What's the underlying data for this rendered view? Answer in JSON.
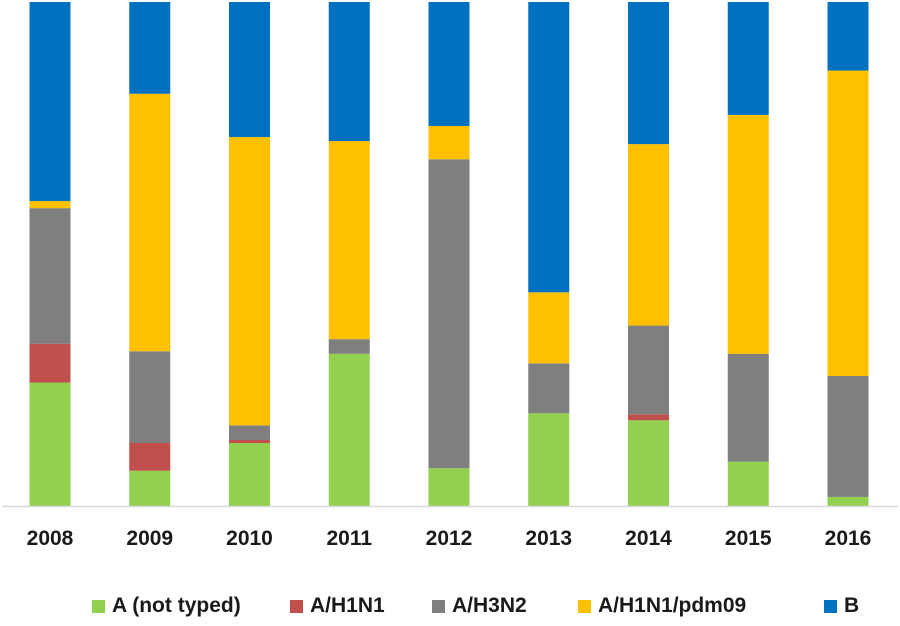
{
  "chart_data": {
    "type": "bar",
    "stacked": true,
    "normalized": true,
    "title": "",
    "xlabel": "",
    "ylabel": "",
    "ylim": [
      0,
      100
    ],
    "grid": false,
    "legend_position": "bottom",
    "categories": [
      "2008",
      "2009",
      "2010",
      "2011",
      "2012",
      "2013",
      "2014",
      "2015",
      "2016"
    ],
    "series": [
      {
        "name": "A (not typed)",
        "color": "#92d050",
        "values": [
          24.5,
          7.0,
          12.5,
          30.2,
          7.5,
          18.4,
          17.0,
          8.8,
          1.8
        ]
      },
      {
        "name": "A/H1N1",
        "color": "#c0504d",
        "values": [
          7.7,
          5.5,
          0.6,
          0.0,
          0.0,
          0.0,
          1.2,
          0.0,
          0.0
        ]
      },
      {
        "name": "A/H3N2",
        "color": "#7f7f7f",
        "values": [
          26.9,
          18.2,
          2.9,
          2.9,
          61.3,
          9.9,
          17.6,
          21.4,
          24.0
        ]
      },
      {
        "name": "A/H1N1/pdm09",
        "color": "#ffc000",
        "values": [
          1.4,
          51.1,
          57.2,
          39.3,
          6.6,
          14.1,
          36.0,
          47.4,
          60.6
        ]
      },
      {
        "name": "B",
        "color": "#0070c0",
        "values": [
          39.5,
          18.2,
          26.8,
          27.6,
          24.6,
          57.6,
          28.2,
          22.4,
          13.6
        ]
      }
    ]
  }
}
